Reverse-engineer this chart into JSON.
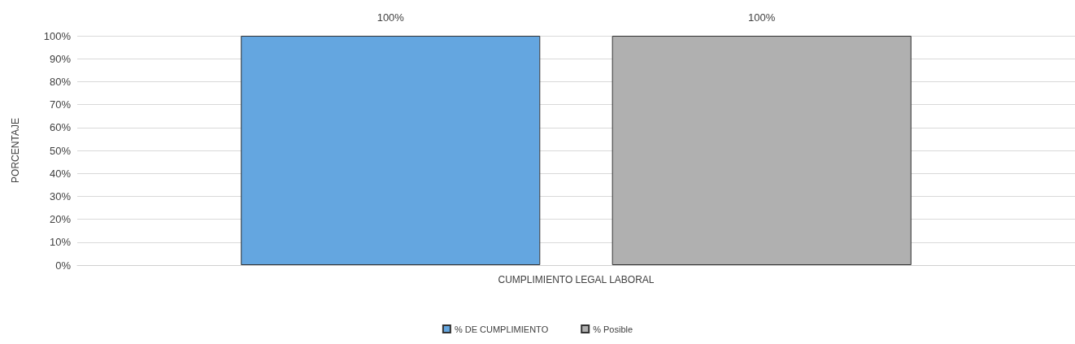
{
  "chart_data": {
    "type": "bar",
    "ylabel": "PORCENTAJE",
    "categories": [
      "CUMPLIMIENTO LEGAL LABORAL"
    ],
    "series": [
      {
        "name": "% DE CUMPLIMIENTO",
        "color": "#64a6e0",
        "values": [
          100
        ],
        "value_labels": [
          "100%"
        ]
      },
      {
        "name": "% Posible",
        "color": "#b0b0b0",
        "values": [
          100
        ],
        "value_labels": [
          "100%"
        ]
      }
    ],
    "ylim": [
      0,
      100
    ],
    "yticks": [
      {
        "value": 0,
        "label": "0%"
      },
      {
        "value": 10,
        "label": "10%"
      },
      {
        "value": 20,
        "label": "20%"
      },
      {
        "value": 30,
        "label": "30%"
      },
      {
        "value": 40,
        "label": "40%"
      },
      {
        "value": 50,
        "label": "50%"
      },
      {
        "value": 60,
        "label": "60%"
      },
      {
        "value": 70,
        "label": "70%"
      },
      {
        "value": 80,
        "label": "80%"
      },
      {
        "value": 90,
        "label": "90%"
      },
      {
        "value": 100,
        "label": "100%"
      }
    ],
    "grid": "y",
    "legend": "bottom"
  }
}
